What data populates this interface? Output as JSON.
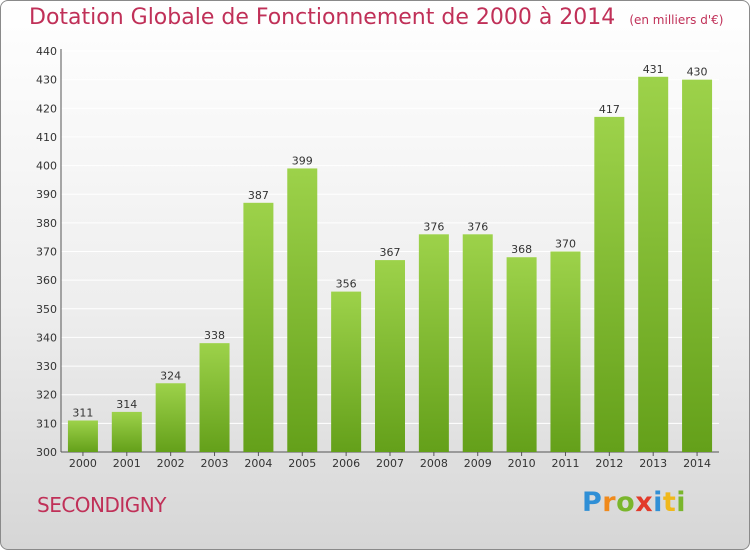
{
  "header": {
    "title": "Dotation Globale de Fonctionnement de 2000 à 2014",
    "unit": "(en milliers d'€)"
  },
  "footer": {
    "commune": "SECONDIGNY",
    "logo": [
      "P",
      "r",
      "o",
      "x",
      "i",
      "t",
      "i"
    ]
  },
  "colors": {
    "bar_light": "#9dd24a",
    "bar_dark": "#64a01a",
    "title": "#c03058",
    "grid": "#ffffff"
  },
  "chart_data": {
    "type": "bar",
    "title": "Dotation Globale de Fonctionnement de 2000 à 2014",
    "subtitle": "(en milliers d'€)",
    "categories": [
      "2000",
      "2001",
      "2002",
      "2003",
      "2004",
      "2005",
      "2006",
      "2007",
      "2008",
      "2009",
      "2010",
      "2011",
      "2012",
      "2013",
      "2014"
    ],
    "values": [
      311,
      314,
      324,
      338,
      387,
      399,
      356,
      367,
      376,
      376,
      368,
      370,
      417,
      431,
      430
    ],
    "ylim": [
      300,
      440
    ],
    "yticks": [
      300,
      310,
      320,
      330,
      340,
      350,
      360,
      370,
      380,
      390,
      400,
      410,
      420,
      430,
      440
    ],
    "grid": true,
    "data_labels": true
  }
}
